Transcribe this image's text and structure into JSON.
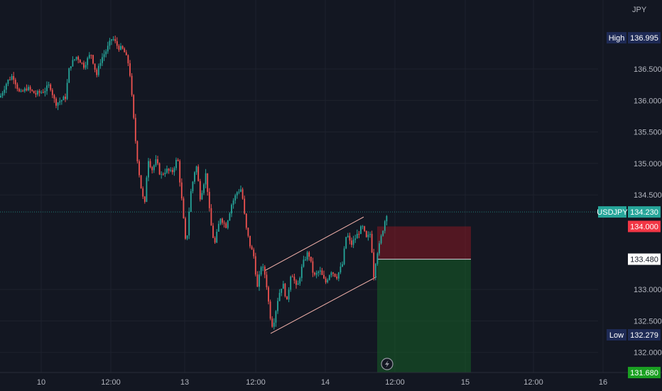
{
  "chart_data": {
    "type": "candlestick",
    "symbol": "USDJPY",
    "currency_label": "JPY",
    "y_range": [
      131.5,
      137.5
    ],
    "y_ticks": [
      "136.500",
      "136.000",
      "135.500",
      "135.000",
      "134.500",
      "133.000",
      "132.500",
      "132.000"
    ],
    "x_ticks": [
      "10",
      "12:00",
      "13",
      "12:00",
      "14",
      "12:00",
      "15",
      "12:00",
      "16"
    ],
    "high": {
      "label": "High",
      "value": "136.995"
    },
    "low": {
      "label": "Low",
      "value": "132.279"
    },
    "last_price": {
      "label": "USDJPY",
      "value": "134.230"
    },
    "stop_level": "134.000",
    "entry_level": "133.480",
    "target_level": "131.680",
    "price_path": [
      [
        0,
        136.05
      ],
      [
        10,
        136.3
      ],
      [
        18,
        136.4
      ],
      [
        28,
        136.1
      ],
      [
        38,
        136.2
      ],
      [
        50,
        136.1
      ],
      [
        62,
        136.15
      ],
      [
        70,
        136.25
      ],
      [
        78,
        135.95
      ],
      [
        86,
        136.0
      ],
      [
        92,
        136.05
      ],
      [
        98,
        136.55
      ],
      [
        108,
        136.7
      ],
      [
        118,
        136.55
      ],
      [
        128,
        136.75
      ],
      [
        136,
        136.4
      ],
      [
        142,
        136.65
      ],
      [
        150,
        136.8
      ],
      [
        158,
        137.0
      ],
      [
        166,
        136.85
      ],
      [
        174,
        136.8
      ],
      [
        182,
        136.55
      ],
      [
        186,
        136.0
      ],
      [
        190,
        135.45
      ],
      [
        194,
        135.0
      ],
      [
        200,
        134.5
      ],
      [
        204,
        134.35
      ],
      [
        208,
        135.1
      ],
      [
        214,
        134.9
      ],
      [
        220,
        135.05
      ],
      [
        226,
        134.8
      ],
      [
        234,
        134.9
      ],
      [
        242,
        134.85
      ],
      [
        250,
        135.1
      ],
      [
        256,
        134.4
      ],
      [
        262,
        133.65
      ],
      [
        268,
        134.5
      ],
      [
        276,
        135.0
      ],
      [
        282,
        134.45
      ],
      [
        290,
        134.85
      ],
      [
        296,
        134.1
      ],
      [
        302,
        133.7
      ],
      [
        310,
        134.15
      ],
      [
        318,
        134.0
      ],
      [
        326,
        134.35
      ],
      [
        334,
        134.55
      ],
      [
        340,
        134.6
      ],
      [
        346,
        134.0
      ],
      [
        352,
        133.7
      ],
      [
        358,
        133.5
      ],
      [
        362,
        133.0
      ],
      [
        368,
        133.4
      ],
      [
        374,
        133.2
      ],
      [
        380,
        132.6
      ],
      [
        384,
        132.4
      ],
      [
        392,
        132.9
      ],
      [
        398,
        133.1
      ],
      [
        404,
        132.8
      ],
      [
        410,
        133.3
      ],
      [
        418,
        133.0
      ],
      [
        426,
        133.4
      ],
      [
        434,
        133.6
      ],
      [
        442,
        133.2
      ],
      [
        450,
        133.3
      ],
      [
        458,
        133.1
      ],
      [
        466,
        133.3
      ],
      [
        474,
        133.2
      ],
      [
        482,
        133.4
      ],
      [
        488,
        133.9
      ],
      [
        494,
        133.7
      ],
      [
        502,
        133.85
      ],
      [
        510,
        134.0
      ],
      [
        516,
        133.8
      ],
      [
        522,
        133.9
      ],
      [
        526,
        133.2
      ],
      [
        530,
        133.55
      ],
      [
        534,
        133.7
      ],
      [
        538,
        133.9
      ],
      [
        542,
        134.1
      ],
      [
        545,
        134.23
      ]
    ],
    "channel": {
      "lower": [
        [
          381,
          132.3
        ],
        [
          530,
          133.2
        ]
      ],
      "upper": [
        [
          373,
          133.3
        ],
        [
          512,
          134.15
        ]
      ]
    }
  }
}
